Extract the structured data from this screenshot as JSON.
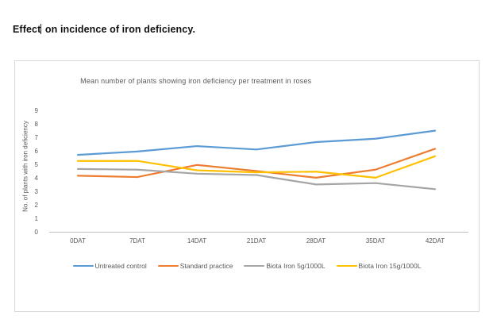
{
  "heading": {
    "text_before_caret": "Effect",
    "text_after_caret": " on incidence of iron deficiency."
  },
  "chart_data": {
    "type": "line",
    "title": "Mean number of plants showing iron deficiency per treatment in roses",
    "xlabel": "",
    "ylabel": "No. of plants with iron deficiency",
    "categories": [
      "0DAT",
      "7DAT",
      "14DAT",
      "21DAT",
      "28DAT",
      "35DAT",
      "42DAT"
    ],
    "series": [
      {
        "name": "Untreated control",
        "color": "#5B9BD5",
        "values": [
          5.75,
          6.0,
          6.4,
          6.15,
          6.7,
          6.95,
          7.55
        ]
      },
      {
        "name": "Standard practice",
        "color": "#ED7D31",
        "values": [
          4.2,
          4.1,
          5.0,
          4.55,
          4.05,
          4.65,
          6.2
        ]
      },
      {
        "name": "Biota Iron 5g/1000L",
        "color": "#A5A5A5",
        "values": [
          4.7,
          4.65,
          4.35,
          4.25,
          3.55,
          3.65,
          3.2
        ]
      },
      {
        "name": "Biota Iron 15g/1000L",
        "color": "#FFC000",
        "values": [
          5.3,
          5.3,
          4.6,
          4.45,
          4.5,
          4.05,
          5.65
        ]
      }
    ],
    "ylim": [
      0,
      9
    ],
    "y_ticks": [
      0,
      1,
      2,
      3,
      4,
      5,
      6,
      7,
      8,
      9
    ],
    "grid": false,
    "legend_position": "bottom",
    "axis_color": "#bfbfbf",
    "text_color": "#595959"
  }
}
